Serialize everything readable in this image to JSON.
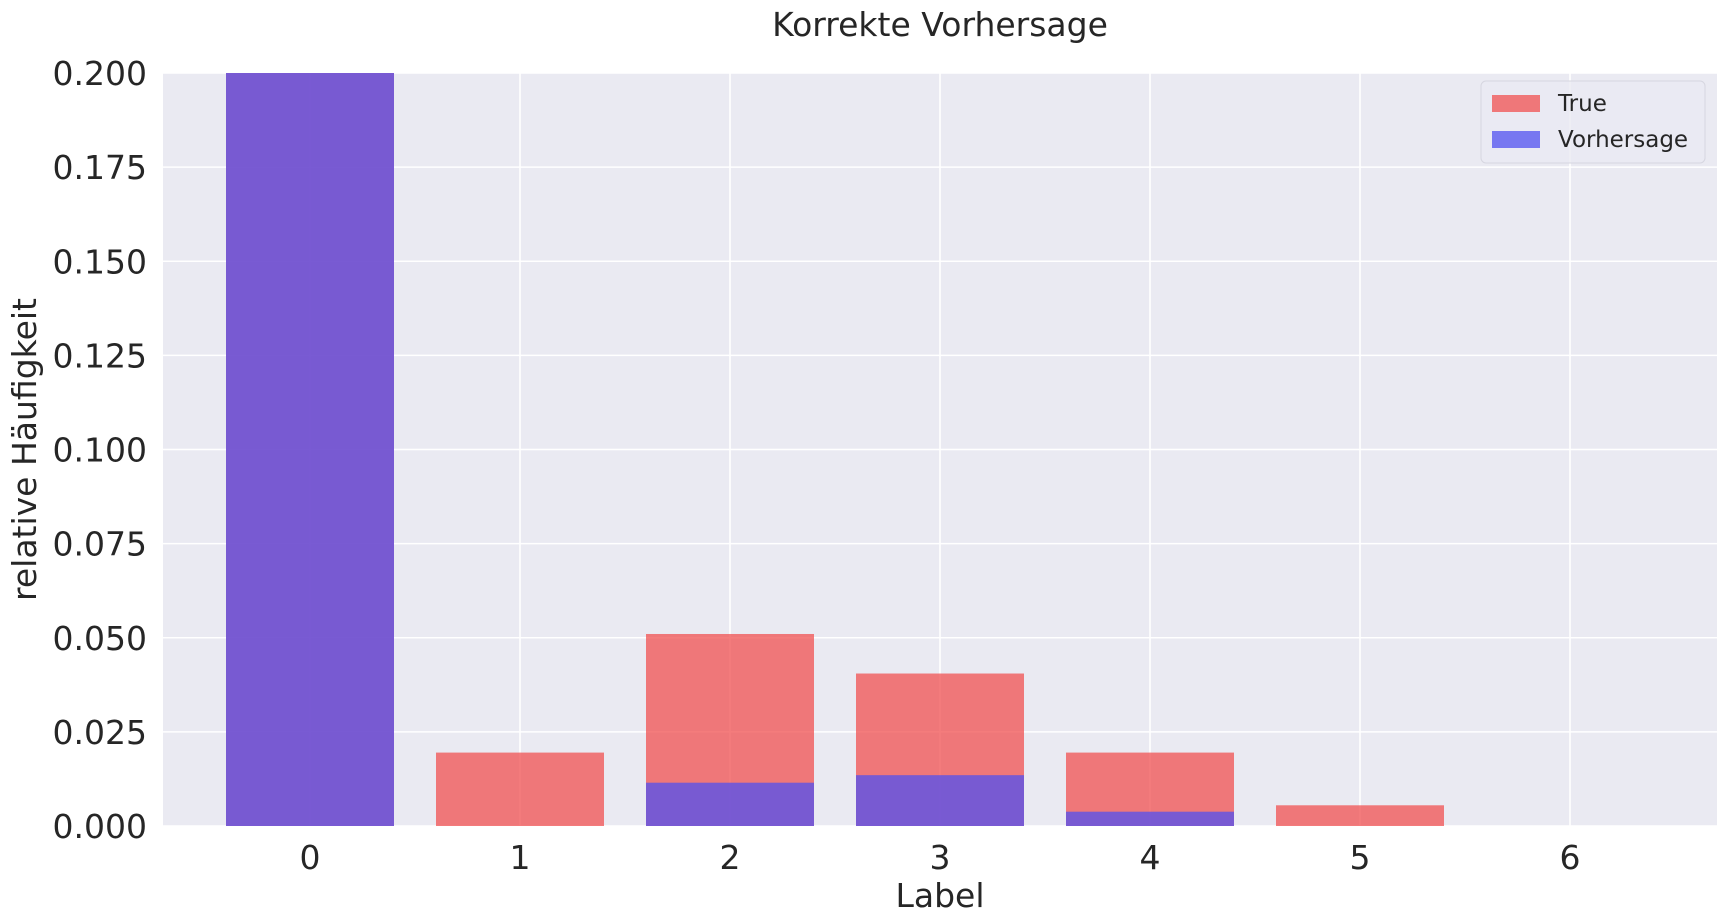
{
  "chart_data": {
    "type": "bar",
    "title": "Korrekte Vorhersage",
    "xlabel": "Label",
    "ylabel": "relative Häufigkeit",
    "categories": [
      "0",
      "1",
      "2",
      "3",
      "4",
      "5",
      "6"
    ],
    "series": [
      {
        "name": "True",
        "color": "#F05050",
        "opacity": 0.75,
        "values": [
          0.2,
          0.0195,
          0.051,
          0.0405,
          0.0195,
          0.0055,
          0.0
        ]
      },
      {
        "name": "Vorhersage",
        "color": "#5050F0",
        "opacity": 0.75,
        "values": [
          0.2,
          0.0,
          0.0115,
          0.0135,
          0.0038,
          0.0,
          0.0
        ]
      }
    ],
    "ylim": [
      0,
      0.2
    ],
    "xlim": [
      -0.7,
      6.7
    ],
    "yticks": [
      "0.000",
      "0.025",
      "0.050",
      "0.075",
      "0.100",
      "0.125",
      "0.150",
      "0.175",
      "0.200"
    ],
    "grid": true,
    "legend_position": "top-right",
    "background_color": "#EAEAF2"
  }
}
